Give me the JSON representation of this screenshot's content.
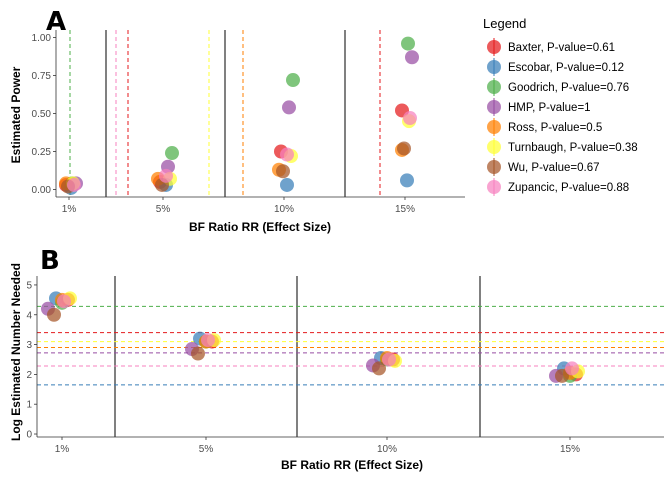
{
  "legend": {
    "title": "Legend",
    "entries": [
      {
        "label": "Baxter, P-value=0.61",
        "color": "#E41A1C"
      },
      {
        "label": "Escobar, P-value=0.12",
        "color": "#377EB8"
      },
      {
        "label": "Goodrich, P-value=0.76",
        "color": "#4DAF4A"
      },
      {
        "label": "HMP, P-value=1",
        "color": "#984EA3"
      },
      {
        "label": "Ross, P-value=0.5",
        "color": "#FF7F00"
      },
      {
        "label": "Turnbaugh, P-value=0.38",
        "color": "#FFFF33"
      },
      {
        "label": "Wu, P-value=0.67",
        "color": "#A65628"
      },
      {
        "label": "Zupancic, P-value=0.88",
        "color": "#F781BF"
      }
    ]
  },
  "chart_data": [
    {
      "panel": "A",
      "type": "scatter",
      "xlabel": "BF Ratio RR (Effect Size)",
      "ylabel": "Estimated Power",
      "categories": [
        "1%",
        "5%",
        "10%",
        "15%"
      ],
      "yticks": [
        "0.00",
        "0.25",
        "0.50",
        "0.75",
        "1.00"
      ],
      "ylim": [
        0,
        1
      ],
      "grid": false,
      "series": [
        {
          "name": "Baxter, P-value=0.61",
          "values": [
            0.03,
            0.05,
            0.25,
            0.52
          ]
        },
        {
          "name": "Escobar, P-value=0.12",
          "values": [
            0.01,
            0.03,
            0.03,
            0.06
          ]
        },
        {
          "name": "Goodrich, P-value=0.76",
          "values": [
            0.04,
            0.24,
            0.72,
            0.96
          ]
        },
        {
          "name": "HMP, P-value=1",
          "values": [
            0.04,
            0.15,
            0.54,
            0.87
          ]
        },
        {
          "name": "Ross, P-value=0.5",
          "values": [
            0.04,
            0.07,
            0.13,
            0.26
          ]
        },
        {
          "name": "Turnbaugh, P-value=0.38",
          "values": [
            0.04,
            0.07,
            0.22,
            0.45
          ]
        },
        {
          "name": "Wu, P-value=0.67",
          "values": [
            0.02,
            0.03,
            0.12,
            0.27
          ]
        },
        {
          "name": "Zupancic, P-value=0.88",
          "values": [
            0.03,
            0.09,
            0.23,
            0.47
          ]
        }
      ]
    },
    {
      "panel": "B",
      "type": "scatter",
      "xlabel": "BF Ratio RR (Effect Size)",
      "ylabel": "Log Estimated Number Needed",
      "categories": [
        "1%",
        "5%",
        "10%",
        "15%"
      ],
      "yticks": [
        "0",
        "1",
        "2",
        "3",
        "4",
        "5"
      ],
      "ylim": [
        -0.1,
        5.3
      ],
      "grid": false,
      "series": [
        {
          "name": "Baxter, P-value=0.61",
          "values": [
            4.5,
            3.1,
            2.5,
            2.0
          ]
        },
        {
          "name": "Escobar, P-value=0.12",
          "values": [
            4.55,
            3.2,
            2.55,
            2.2
          ]
        },
        {
          "name": "Goodrich, P-value=0.76",
          "values": [
            4.4,
            3.1,
            2.5,
            1.95
          ]
        },
        {
          "name": "HMP, P-value=1",
          "values": [
            4.2,
            2.85,
            2.3,
            1.95
          ]
        },
        {
          "name": "Ross, P-value=0.5",
          "values": [
            4.5,
            3.1,
            2.55,
            2.05
          ]
        },
        {
          "name": "Turnbaugh, P-value=0.38",
          "values": [
            4.55,
            3.15,
            2.45,
            2.1
          ]
        },
        {
          "name": "Wu, P-value=0.67",
          "values": [
            4.0,
            2.7,
            2.2,
            1.95
          ]
        },
        {
          "name": "Zupancic, P-value=0.88",
          "values": [
            4.45,
            3.15,
            2.5,
            2.2
          ]
        }
      ],
      "hlines": [
        {
          "series": "Goodrich, P-value=0.76",
          "y": 4.28
        },
        {
          "series": "Baxter, P-value=0.61",
          "y": 3.4
        },
        {
          "series": "Turnbaugh, P-value=0.38",
          "y": 3.1
        },
        {
          "series": "Ross, P-value=0.5",
          "y": 2.9
        },
        {
          "series": "HMP, P-value=1",
          "y": 2.72
        },
        {
          "series": "Zupancic, P-value=0.88",
          "y": 2.28
        },
        {
          "series": "Escobar, P-value=0.12",
          "y": 1.65
        }
      ]
    }
  ]
}
